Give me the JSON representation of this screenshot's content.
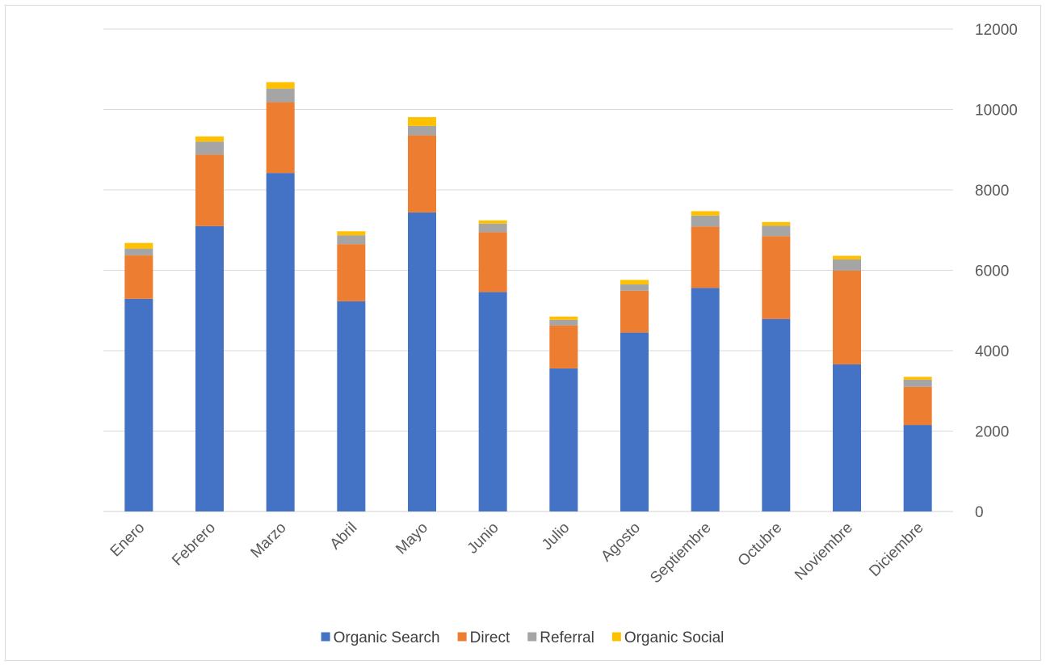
{
  "chart_data": {
    "type": "bar",
    "stacked": true,
    "categories": [
      "Enero",
      "Febrero",
      "Marzo",
      "Abril",
      "Mayo",
      "Junio",
      "Julio",
      "Agosto",
      "Septiembre",
      "Octubre",
      "Noviembre",
      "Diciembre"
    ],
    "series": [
      {
        "name": "Organic Search",
        "color": "#4472C4",
        "values": [
          5290,
          7100,
          8420,
          5230,
          7440,
          5460,
          3560,
          4450,
          5560,
          4790,
          3660,
          2150
        ]
      },
      {
        "name": "Direct",
        "color": "#ED7D31",
        "values": [
          1080,
          1780,
          1760,
          1420,
          1920,
          1490,
          1070,
          1040,
          1530,
          2060,
          2330,
          950
        ]
      },
      {
        "name": "Referral",
        "color": "#A5A5A5",
        "values": [
          170,
          320,
          340,
          220,
          230,
          210,
          140,
          160,
          270,
          260,
          280,
          180
        ]
      },
      {
        "name": "Organic Social",
        "color": "#FFC000",
        "values": [
          140,
          130,
          160,
          100,
          220,
          80,
          80,
          110,
          110,
          90,
          90,
          70
        ]
      }
    ],
    "y_axis": {
      "position": "right",
      "min": 0,
      "max": 12000,
      "step": 2000,
      "tick_labels": [
        "0",
        "2000",
        "4000",
        "6000",
        "8000",
        "10000",
        "12000"
      ]
    },
    "grid": true,
    "legend": {
      "position": "bottom"
    },
    "title": "",
    "xlabel": "",
    "ylabel": ""
  }
}
